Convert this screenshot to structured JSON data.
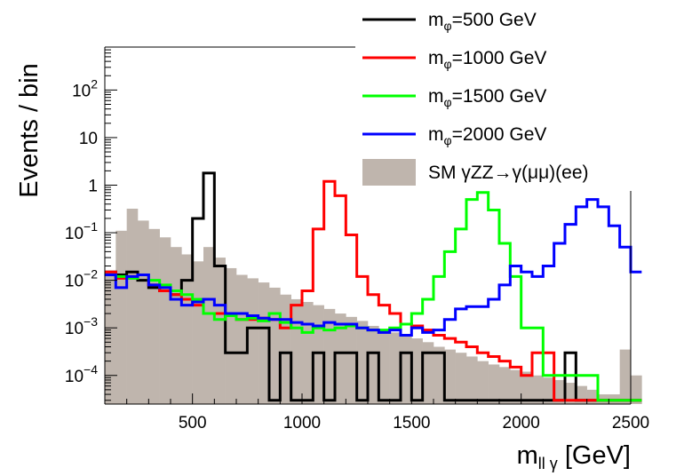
{
  "chart_data": {
    "type": "histogram",
    "xlabel": {
      "main": "m",
      "sub": "ll γ",
      "unit": "[GeV]"
    },
    "ylabel": "Events / bin",
    "xlim": [
      100,
      2500
    ],
    "ylim": [
      2.5e-05,
      800
    ],
    "y_scale": "log",
    "grid": false,
    "legend_position": "top-right",
    "x_ticks": [
      "500",
      "1000",
      "1500",
      "2000",
      "2500"
    ],
    "y_ticks": [
      {
        "base": "10",
        "exp": "−4",
        "value": 0.0001
      },
      {
        "base": "10",
        "exp": "−3",
        "value": 0.001
      },
      {
        "base": "10",
        "exp": "−2",
        "value": 0.01
      },
      {
        "base": "10",
        "exp": "−1",
        "value": 0.1
      },
      {
        "base": "1",
        "exp": "",
        "value": 1
      },
      {
        "base": "10",
        "exp": "",
        "value": 10
      },
      {
        "base": "10",
        "exp": "2",
        "value": 100
      }
    ],
    "bin_width": 50,
    "x_start": 100,
    "series": [
      {
        "name": "SM γZZ→γ(μμ)(ee)",
        "legend": {
          "main": "SM γZZ→γ(μμ)(ee)"
        },
        "style": "fill",
        "color": "#bfb5ad",
        "values": [
          0.013,
          0.11,
          0.32,
          0.18,
          0.12,
          0.08,
          0.05,
          0.035,
          0.025,
          0.05,
          0.03,
          0.018,
          0.013,
          0.011,
          0.009,
          0.007,
          0.005,
          0.004,
          0.0035,
          0.003,
          0.0025,
          0.002,
          0.0017,
          0.0014,
          0.0011,
          0.0009,
          0.0008,
          0.0007,
          0.0006,
          0.0005,
          0.0004,
          0.00035,
          0.0003,
          0.00025,
          0.0002,
          0.00017,
          0.00015,
          0.00013,
          0.00012,
          0.0001,
          9e-05,
          8e-05,
          7e-05,
          6e-05,
          5e-05,
          4e-05,
          4e-05,
          0.00035,
          0.0001
        ]
      },
      {
        "name": "mφ=500 GeV",
        "legend": {
          "main": "m",
          "sub": "φ",
          "rest": "=500 GeV"
        },
        "style": "step",
        "color": "#000000",
        "values": [
          0.015,
          0.013,
          0.015,
          0.01,
          0.007,
          0.006,
          0.005,
          0.01,
          0.2,
          1.8,
          0.02,
          0.0003,
          0.0003,
          0.001,
          0.001,
          3e-05,
          0.0003,
          3e-05,
          3e-05,
          0.0003,
          3e-05,
          0.0003,
          0.0003,
          3e-05,
          0.0003,
          3e-05,
          3e-05,
          0.0003,
          3e-05,
          0.0003,
          0.0003,
          3e-05,
          3e-05,
          3e-05,
          3e-05,
          3e-05,
          3e-05,
          3e-05,
          3e-05,
          3e-05,
          3e-05,
          3e-05,
          0.0003,
          3e-05,
          3e-05,
          3e-05,
          3e-05,
          3e-05,
          3e-05
        ]
      },
      {
        "name": "mφ=1000 GeV",
        "legend": {
          "main": "m",
          "sub": "φ",
          "rest": "=1000 GeV"
        },
        "style": "step",
        "color": "#ff0000",
        "values": [
          0.015,
          0.011,
          0.012,
          0.013,
          0.008,
          0.006,
          0.005,
          0.004,
          0.003,
          0.002,
          0.002,
          0.002,
          0.0015,
          0.0015,
          0.0016,
          0.0015,
          0.001,
          0.003,
          0.006,
          0.12,
          1.2,
          0.6,
          0.09,
          0.012,
          0.005,
          0.003,
          0.002,
          0.0012,
          0.0011,
          0.0009,
          0.0007,
          0.0006,
          0.0005,
          0.0004,
          0.0003,
          0.00025,
          0.0002,
          0.00015,
          0.0001,
          0.0003,
          0.0003,
          3e-05,
          3e-05,
          3e-05,
          3e-05,
          3e-05,
          3e-05,
          3e-05,
          3e-05
        ]
      },
      {
        "name": "mφ=1500 GeV",
        "legend": {
          "main": "m",
          "sub": "φ",
          "rest": "=1500 GeV"
        },
        "style": "step",
        "color": "#00ff00",
        "values": [
          0.013,
          0.012,
          0.011,
          0.013,
          0.01,
          0.008,
          0.006,
          0.005,
          0.004,
          0.002,
          0.0015,
          0.0018,
          0.0015,
          0.0016,
          0.0014,
          0.002,
          0.0013,
          0.001,
          0.0008,
          0.001,
          0.0009,
          0.001,
          0.0011,
          0.001,
          0.0009,
          0.0009,
          0.001,
          0.0012,
          0.002,
          0.004,
          0.012,
          0.04,
          0.12,
          0.5,
          0.7,
          0.3,
          0.06,
          0.012,
          0.001,
          0.001,
          0.0001,
          0.0001,
          0.0001,
          0.0001,
          0.0001,
          3e-05,
          3e-05,
          3e-05,
          3e-05
        ]
      },
      {
        "name": "mφ=2000 GeV",
        "legend": {
          "main": "m",
          "sub": "φ",
          "rest": "=2000 GeV"
        },
        "style": "step",
        "color": "#0000ff",
        "values": [
          0.013,
          0.007,
          0.012,
          0.013,
          0.008,
          0.007,
          0.004,
          0.003,
          0.0035,
          0.004,
          0.003,
          0.002,
          0.002,
          0.0018,
          0.0016,
          0.0015,
          0.0015,
          0.0013,
          0.0012,
          0.0011,
          0.0013,
          0.0012,
          0.0012,
          0.001,
          0.0009,
          0.0008,
          0.0009,
          0.0007,
          0.001,
          0.0008,
          0.0009,
          0.0015,
          0.0025,
          0.0028,
          0.0028,
          0.004,
          0.008,
          0.02,
          0.015,
          0.012,
          0.02,
          0.06,
          0.15,
          0.35,
          0.5,
          0.35,
          0.14,
          0.05,
          0.015
        ]
      }
    ]
  }
}
